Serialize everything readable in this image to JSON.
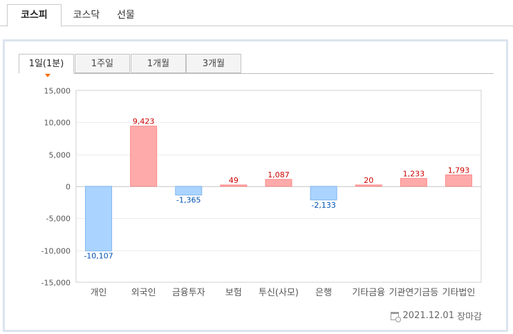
{
  "top_tabs": [
    {
      "label": "코스피",
      "active": true
    },
    {
      "label": "코스닥",
      "active": false
    },
    {
      "label": "선물",
      "active": false
    }
  ],
  "period_tabs": [
    {
      "label": "1일(1분)",
      "active": true
    },
    {
      "label": "1주일",
      "active": false
    },
    {
      "label": "1개월",
      "active": false
    },
    {
      "label": "3개월",
      "active": false
    }
  ],
  "footer": {
    "icon": "calendar-clock-icon",
    "date": "2021.12.01",
    "status": "장마감"
  },
  "colors": {
    "positive_fill": "#ffaaaa",
    "positive_text": "#cc0000",
    "positive_stroke": "#ff8a8a",
    "negative_fill": "#aad4ff",
    "negative_text": "#0050b4",
    "negative_stroke": "#7fb5f0",
    "marker": "#ff6a00"
  },
  "chart_data": {
    "type": "bar",
    "categories": [
      "개인",
      "외국인",
      "금융투자",
      "보험",
      "투신(사모)",
      "은행",
      "기타금융",
      "기관연기금등",
      "기타법인"
    ],
    "values": [
      -10107,
      9423,
      -1365,
      49,
      1087,
      -2133,
      20,
      1233,
      1793
    ],
    "value_labels": [
      "-10,107",
      "9,423",
      "-1,365",
      "49",
      "1,087",
      "-2,133",
      "20",
      "1,233",
      "1,793"
    ],
    "yticks": [
      15000,
      10000,
      5000,
      0,
      -5000,
      -10000,
      -15000
    ],
    "ytick_labels": [
      "15,000",
      "10,000",
      "5,000",
      "0",
      "-5,000",
      "-10,000",
      "-15,000"
    ],
    "ylim": [
      -15000,
      15000
    ],
    "grid": true,
    "legend": "none"
  }
}
